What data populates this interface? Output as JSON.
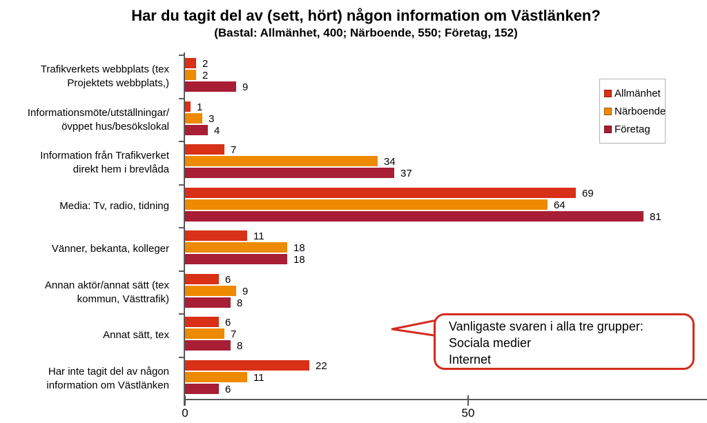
{
  "title": "Har du tagit del av (sett, hört) någon information om Västlänken?",
  "subtitle": "(Bastal: Allmänhet, 400; Närboende, 550; Företag, 152)",
  "chart_data": {
    "type": "bar",
    "orientation": "horizontal",
    "title": "Har du tagit del av (sett, hört) någon information om Västlänken?",
    "subtitle": "(Bastal: Allmänhet, 400; Närboende, 550; Företag, 152)",
    "categories": [
      "Trafikverkets webbplats (tex\nProjektets webbplats,)",
      "Informationsmöte/utställningar/\növppet hus/besökslokal",
      "Information från Trafikverket\ndirekt hem i brevlåda",
      "Media: Tv, radio, tidning",
      "Vänner, bekanta, kolleger",
      "Annan aktör/annat sätt (tex\nkommun, Västtrafik)",
      "Annat sätt, tex",
      "Har inte tagit del av någon\ninformation om Västlänken"
    ],
    "series": [
      {
        "name": "Allmänhet",
        "color": "#d93018",
        "values": [
          2,
          1,
          7,
          69,
          11,
          6,
          6,
          22
        ]
      },
      {
        "name": "Närboende",
        "color": "#ee8a00",
        "values": [
          2,
          3,
          34,
          64,
          18,
          9,
          7,
          11
        ]
      },
      {
        "name": "Företag",
        "color": "#a81e35",
        "values": [
          9,
          4,
          37,
          81,
          18,
          8,
          8,
          6
        ]
      }
    ],
    "xlim": [
      0,
      92
    ],
    "x_ticks": [
      0,
      50
    ],
    "grid": false,
    "legend_position": "top-right",
    "data_labels": true
  },
  "callout": {
    "lines": [
      "Vanligaste svaren i alla tre grupper:",
      "Sociala medier",
      "Internet"
    ],
    "border_color": "#d32b1e"
  },
  "axis_color": "#595959"
}
